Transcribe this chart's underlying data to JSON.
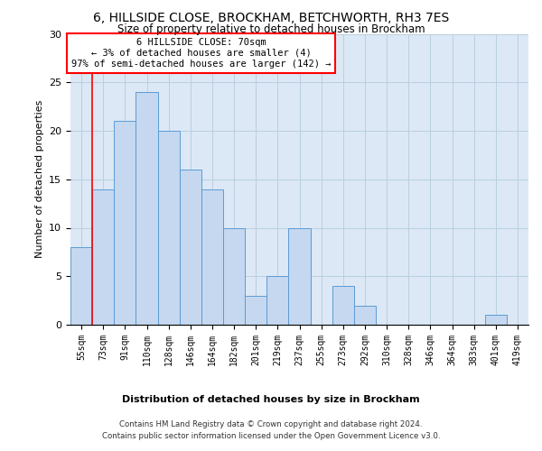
{
  "title1": "6, HILLSIDE CLOSE, BROCKHAM, BETCHWORTH, RH3 7ES",
  "title2": "Size of property relative to detached houses in Brockham",
  "xlabel": "Distribution of detached houses by size in Brockham",
  "ylabel": "Number of detached properties",
  "categories": [
    "55sqm",
    "73sqm",
    "91sqm",
    "110sqm",
    "128sqm",
    "146sqm",
    "164sqm",
    "182sqm",
    "201sqm",
    "219sqm",
    "237sqm",
    "255sqm",
    "273sqm",
    "292sqm",
    "310sqm",
    "328sqm",
    "346sqm",
    "364sqm",
    "383sqm",
    "401sqm",
    "419sqm"
  ],
  "values": [
    8,
    14,
    21,
    24,
    20,
    16,
    14,
    10,
    3,
    5,
    10,
    0,
    4,
    2,
    0,
    0,
    0,
    0,
    0,
    1,
    0
  ],
  "bar_color": "#c5d8f0",
  "bar_edge_color": "#5b9bd5",
  "annotation_text_line1": "6 HILLSIDE CLOSE: 70sqm",
  "annotation_text_line2": "← 3% of detached houses are smaller (4)",
  "annotation_text_line3": "97% of semi-detached houses are larger (142) →",
  "annotation_box_color": "white",
  "annotation_box_edge_color": "red",
  "ylim": [
    0,
    30
  ],
  "yticks": [
    0,
    5,
    10,
    15,
    20,
    25,
    30
  ],
  "grid_color": "#b8cfe0",
  "bg_color": "#dce8f5",
  "footer1": "Contains HM Land Registry data © Crown copyright and database right 2024.",
  "footer2": "Contains public sector information licensed under the Open Government Licence v3.0."
}
